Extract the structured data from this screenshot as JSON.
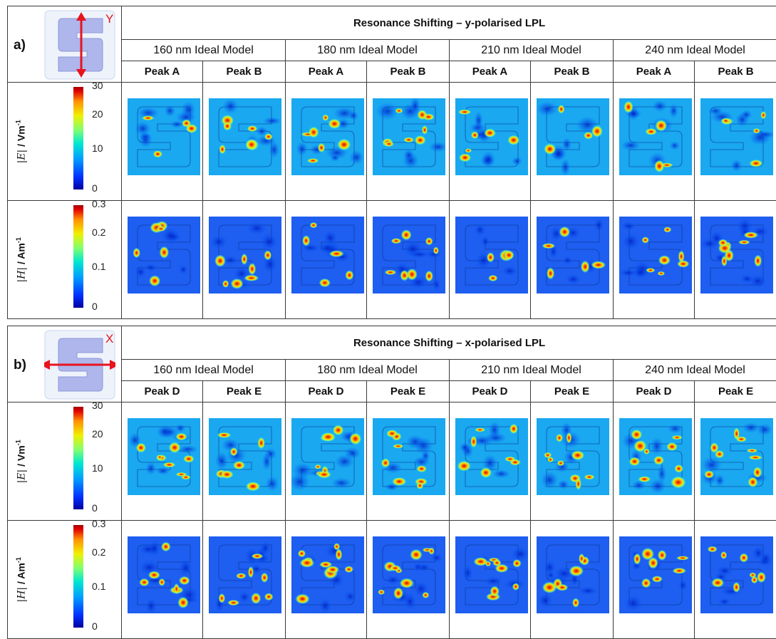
{
  "panels": [
    {
      "label": "a)",
      "icon_axis": "Y",
      "title": "Resonance Shifting – y-polarised LPL",
      "models": [
        "160 nm Ideal Model",
        "180 nm Ideal Model",
        "210 nm Ideal Model",
        "240 nm Ideal Model"
      ],
      "peaks": [
        "Peak A",
        "Peak B",
        "Peak A",
        "Peak B",
        "Peak A",
        "Peak B",
        "Peak A",
        "Peak B"
      ],
      "rows": [
        {
          "quantity": "|E|",
          "unit": " / Vm",
          "unit_sup": "-1",
          "ticks": [
            "30",
            "20",
            "10",
            "0"
          ]
        },
        {
          "quantity": "|H|",
          "unit": " / Am",
          "unit_sup": "-1",
          "ticks": [
            "0.3",
            "0.2",
            "0.1",
            "0"
          ]
        }
      ]
    },
    {
      "label": "b)",
      "icon_axis": "X",
      "title": "Resonance Shifting – x-polarised LPL",
      "models": [
        "160 nm Ideal Model",
        "180 nm Ideal Model",
        "210 nm Ideal Model",
        "240 nm Ideal Model"
      ],
      "peaks": [
        "Peak D",
        "Peak E",
        "Peak D",
        "Peak E",
        "Peak D",
        "Peak E",
        "Peak D",
        "Peak E"
      ],
      "rows": [
        {
          "quantity": "|E|",
          "unit": " / Vm",
          "unit_sup": "-1",
          "ticks": [
            "30",
            "20",
            "10",
            "0"
          ]
        },
        {
          "quantity": "|H|",
          "unit": " / Am",
          "unit_sup": "-1",
          "ticks": [
            "0.3",
            "0.2",
            "0.1",
            "0"
          ]
        }
      ]
    }
  ],
  "colors": {
    "icon_fill": "#aeb6ec",
    "arrow": "#e8141c",
    "map_bg": "#1aa8f0"
  }
}
